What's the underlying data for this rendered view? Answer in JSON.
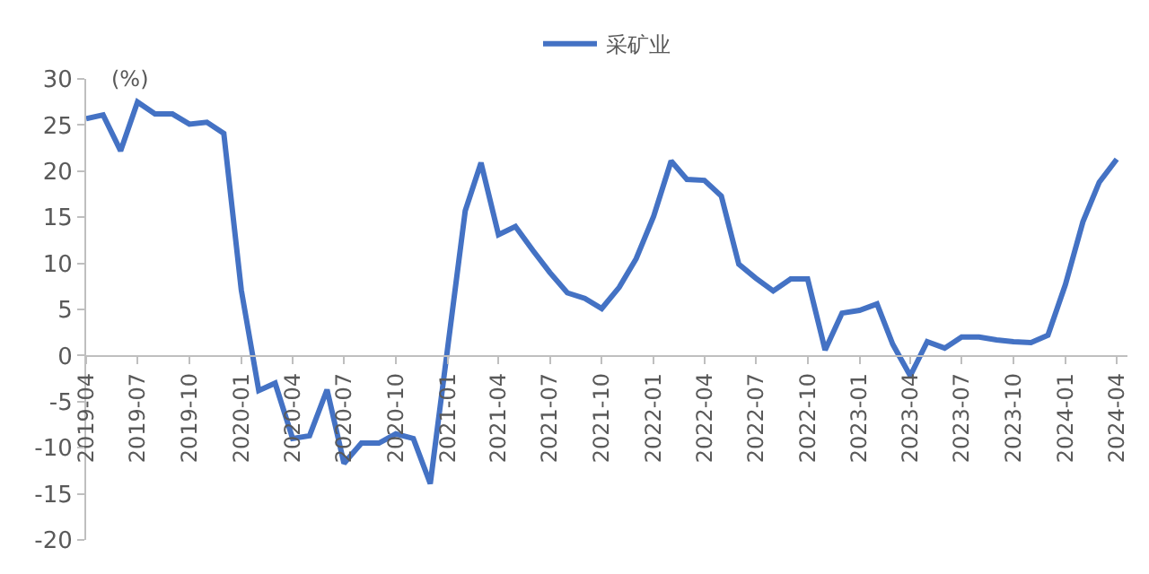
{
  "chart_data": {
    "type": "line",
    "ylabel": "(%)",
    "x": [
      "2019-04",
      "2019-05",
      "2019-06",
      "2019-07",
      "2019-08",
      "2019-09",
      "2019-10",
      "2019-11",
      "2019-12",
      "2020-01",
      "2020-02",
      "2020-03",
      "2020-04",
      "2020-05",
      "2020-06",
      "2020-07",
      "2020-08",
      "2020-09",
      "2020-10",
      "2020-11",
      "2020-12",
      "2021-01",
      "2021-02",
      "2021-03",
      "2021-04",
      "2021-05",
      "2021-06",
      "2021-07",
      "2021-08",
      "2021-09",
      "2021-10",
      "2021-11",
      "2021-12",
      "2022-01",
      "2022-02",
      "2022-03",
      "2022-04",
      "2022-05",
      "2022-06",
      "2022-07",
      "2022-08",
      "2022-09",
      "2022-10",
      "2022-11",
      "2022-12",
      "2023-01",
      "2023-02",
      "2023-03",
      "2023-04",
      "2023-05",
      "2023-06",
      "2023-07",
      "2023-08",
      "2023-09",
      "2023-10",
      "2023-11",
      "2023-12",
      "2024-01",
      "2024-02",
      "2024-03",
      "2024-04"
    ],
    "series": [
      {
        "name": "采矿业",
        "color": "#4472c4",
        "values": [
          25.7,
          26.1,
          22.2,
          27.5,
          26.2,
          26.2,
          25.1,
          25.3,
          24.1,
          7.1,
          -3.8,
          -3.0,
          -9.0,
          -8.7,
          -3.7,
          -11.7,
          -9.5,
          -9.5,
          -8.5,
          -9.0,
          -13.9,
          0.9,
          15.7,
          20.9,
          13.1,
          14.0,
          11.4,
          9.0,
          6.8,
          6.2,
          5.1,
          7.4,
          10.5,
          15.1,
          21.1,
          19.1,
          19.0,
          17.3,
          9.9,
          8.4,
          7.0,
          8.3,
          8.3,
          0.6,
          4.6,
          4.9,
          5.6,
          1.2,
          -2.2,
          1.5,
          0.8,
          2.0,
          2.0,
          1.7,
          1.5,
          1.4,
          2.2,
          7.7,
          14.5,
          18.8,
          21.3
        ]
      }
    ],
    "xlim": [
      "2019-04",
      "2024-04-20"
    ],
    "xticks": [
      "2019-04",
      "2019-07",
      "2019-10",
      "2020-01",
      "2020-04",
      "2020-07",
      "2020-10",
      "2021-01",
      "2021-04",
      "2021-07",
      "2021-10",
      "2022-01",
      "2022-04",
      "2022-07",
      "2022-10",
      "2023-01",
      "2023-04",
      "2023-07",
      "2023-10",
      "2024-01",
      "2024-04"
    ],
    "ylim": [
      -20,
      30
    ],
    "yticks": [
      -20,
      -15,
      -10,
      -5,
      0,
      5,
      10,
      15,
      20,
      25,
      30
    ],
    "legend": "top",
    "marker": "none",
    "line_style": "solid"
  }
}
